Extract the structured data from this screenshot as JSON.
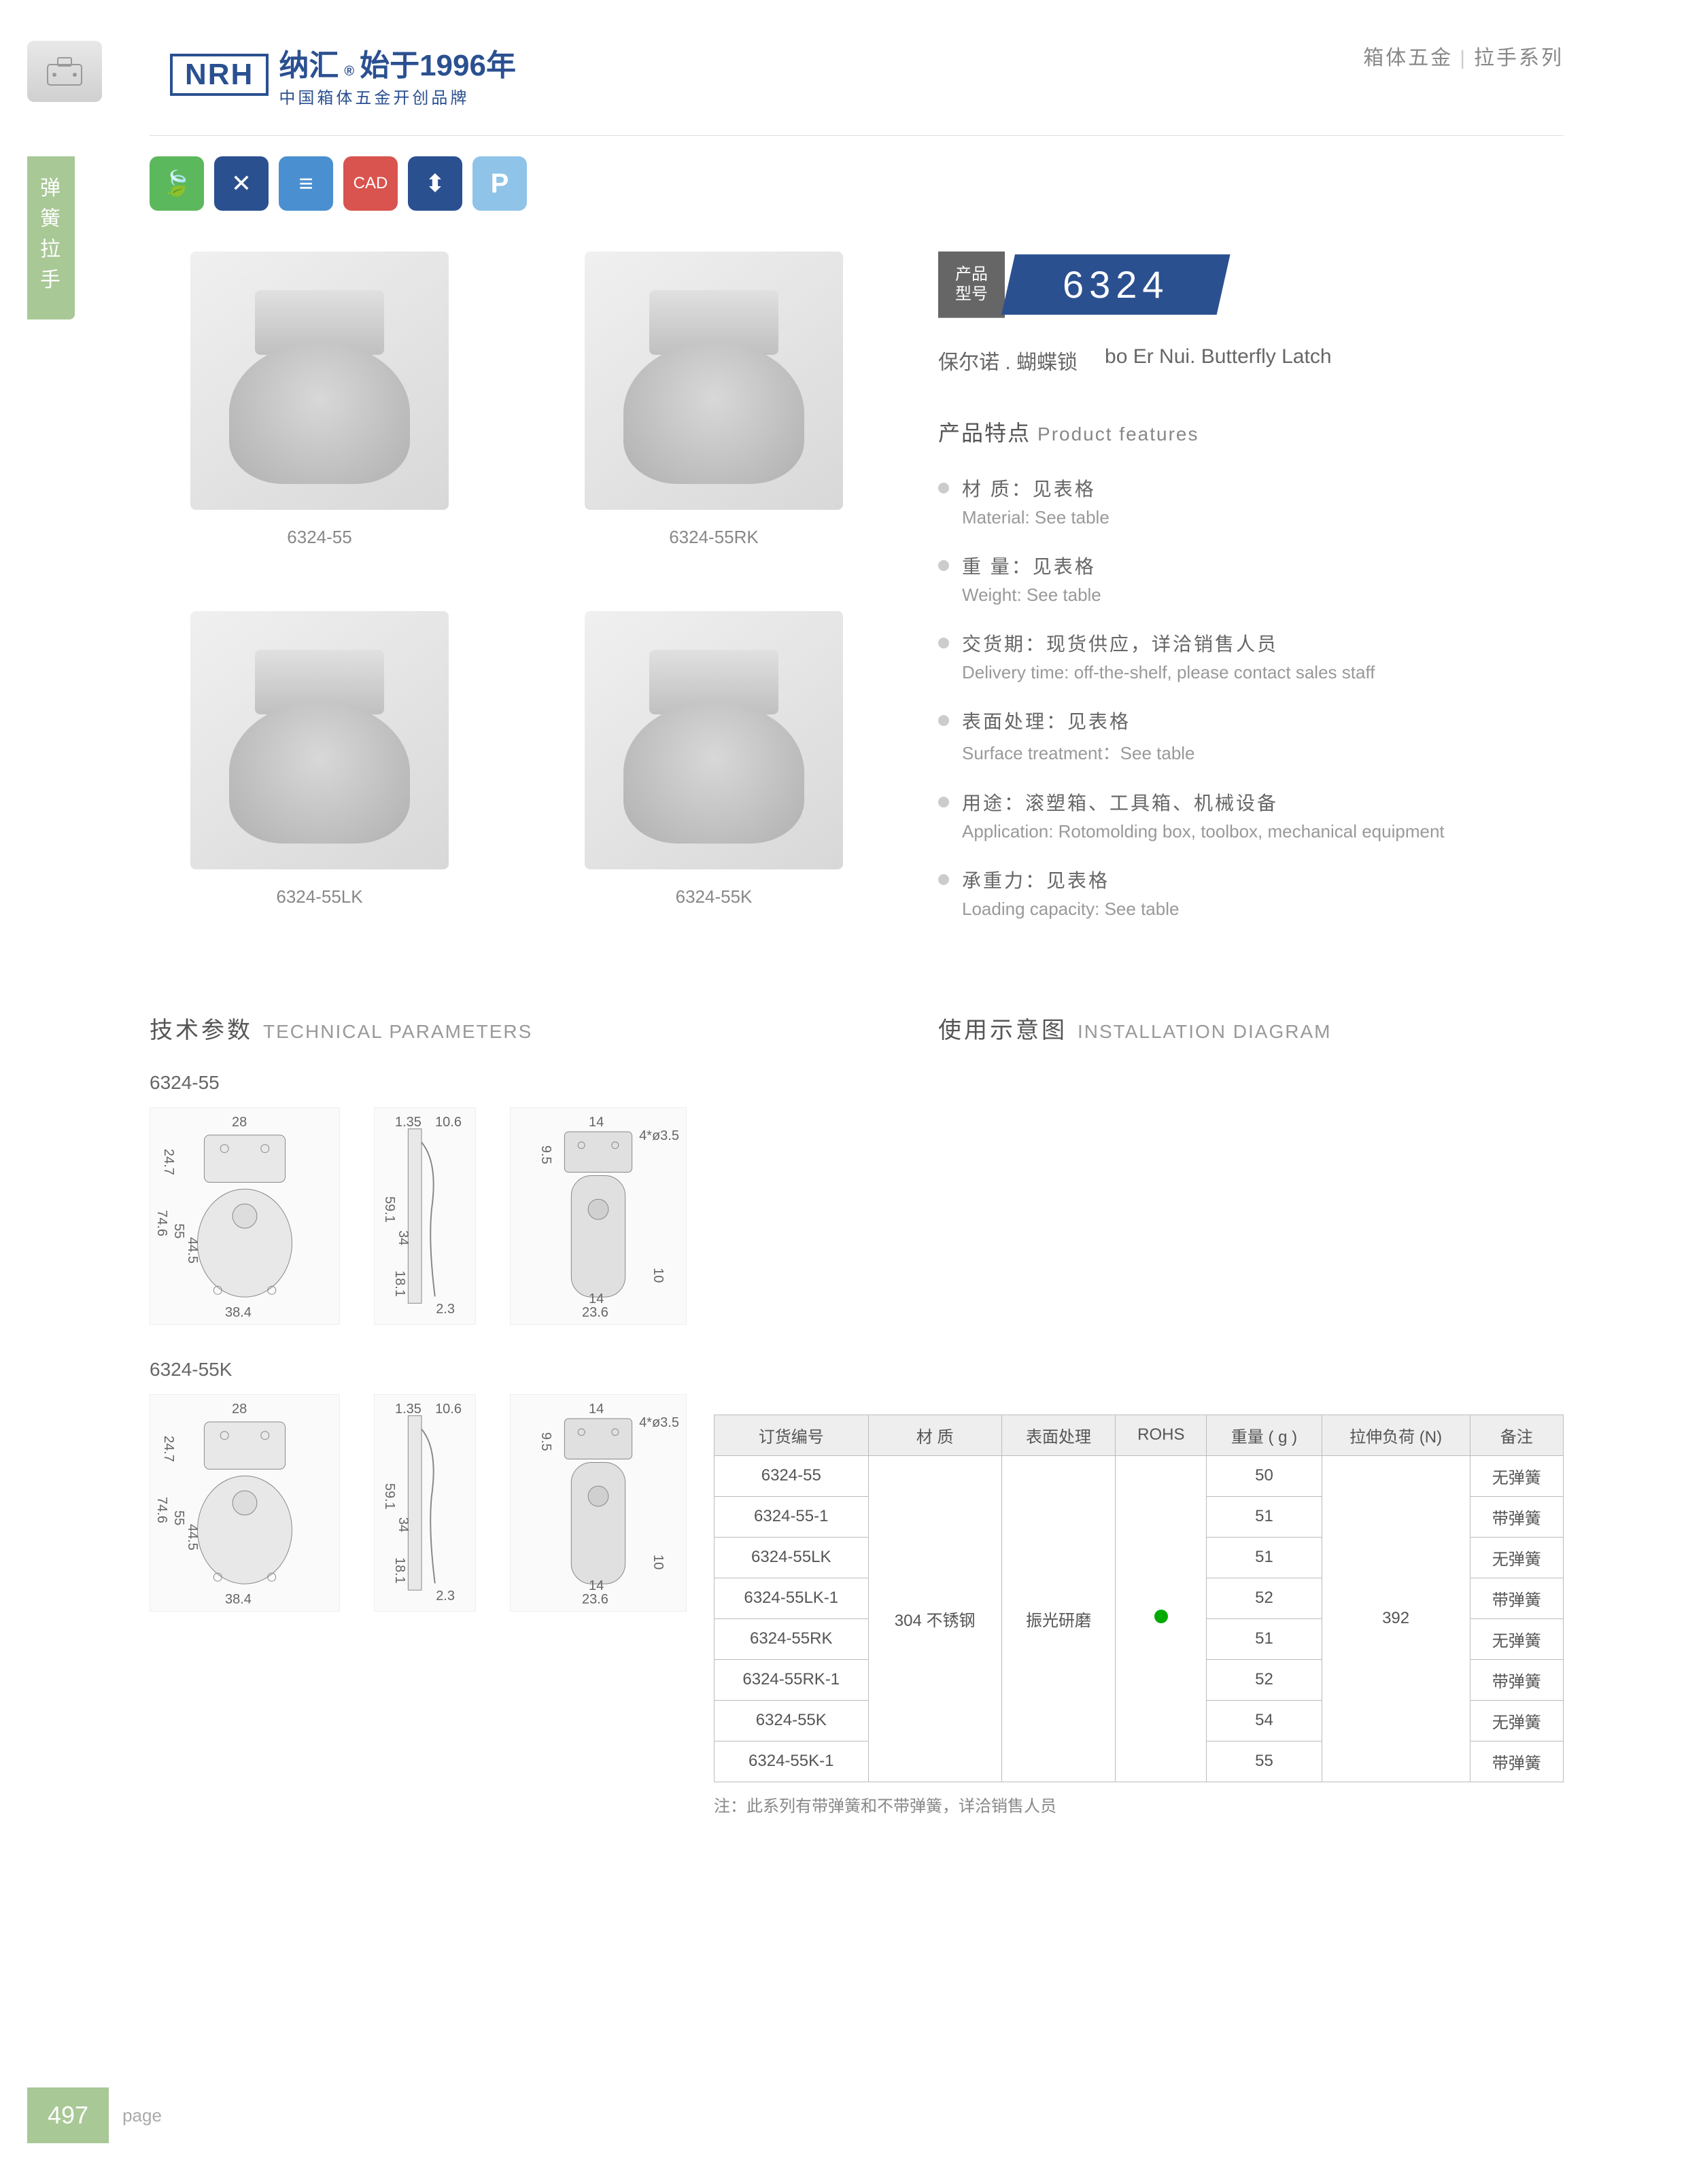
{
  "header": {
    "brand": "纳汇",
    "since": "始于1996年",
    "slogan": "中国箱体五金开创品牌",
    "logo": "NRH",
    "right1": "箱体五金",
    "right2": "拉手系列"
  },
  "sideTab": "弹簧拉手",
  "badges": [
    "🍃",
    "✕",
    "≡",
    "CAD",
    "⬍",
    "P"
  ],
  "products": [
    {
      "label": "6324-55"
    },
    {
      "label": "6324-55RK"
    },
    {
      "label": "6324-55LK"
    },
    {
      "label": "6324-55K"
    }
  ],
  "model": {
    "lbl1": "产品",
    "lbl2": "型号",
    "num": "6324",
    "nameCn": "保尔诺 . 蝴蝶锁",
    "nameEn": "bo Er Nui. Butterfly Latch"
  },
  "featTitle": {
    "cn": "产品特点",
    "en": "Product features"
  },
  "features": [
    {
      "cn": "材 质：见表格",
      "en": "Material: See table"
    },
    {
      "cn": "重 量：见表格",
      "en": "Weight: See table"
    },
    {
      "cn": "交货期：现货供应，详洽销售人员",
      "en": "Delivery time: off-the-shelf, please contact sales staff"
    },
    {
      "cn": "表面处理：见表格",
      "en": "Surface treatment：See table"
    },
    {
      "cn": "用途：滚塑箱、工具箱、机械设备",
      "en": "Application: Rotomolding box, toolbox, mechanical equipment"
    },
    {
      "cn": "承重力：见表格",
      "en": "Loading capacity: See table"
    }
  ],
  "techTitle": {
    "cn": "技术参数",
    "en": "TECHNICAL PARAMETERS"
  },
  "installTitle": {
    "cn": "使用示意图",
    "en": "INSTALLATION DIAGRAM"
  },
  "techBlocks": [
    "6324-55",
    "6324-55K"
  ],
  "dims": {
    "d1": "28",
    "d2": "1.35",
    "d3": "10.6",
    "d4": "14",
    "d5": "4*ø3.5",
    "d6": "24.7",
    "d7": "74.6",
    "d8": "55",
    "d9": "44.5",
    "d10": "34",
    "d11": "59.1",
    "d12": "18.1",
    "d13": "2.3",
    "d14": "38.4",
    "d15": "9.5",
    "d16": "10",
    "d17": "23.6"
  },
  "table": {
    "headers": [
      "订货编号",
      "材 质",
      "表面处理",
      "ROHS",
      "重量 ( g )",
      "拉伸负荷 (N)",
      "备注"
    ],
    "material": "304 不锈钢",
    "surface": "振光研磨",
    "load": "392",
    "rows": [
      {
        "code": "6324-55",
        "weight": "50",
        "note": "无弹簧"
      },
      {
        "code": "6324-55-1",
        "weight": "51",
        "note": "带弹簧"
      },
      {
        "code": "6324-55LK",
        "weight": "51",
        "note": "无弹簧"
      },
      {
        "code": "6324-55LK-1",
        "weight": "52",
        "note": "带弹簧"
      },
      {
        "code": "6324-55RK",
        "weight": "51",
        "note": "无弹簧"
      },
      {
        "code": "6324-55RK-1",
        "weight": "52",
        "note": "带弹簧"
      },
      {
        "code": "6324-55K",
        "weight": "54",
        "note": "无弹簧"
      },
      {
        "code": "6324-55K-1",
        "weight": "55",
        "note": "带弹簧"
      }
    ],
    "note": "注：此系列有带弹簧和不带弹簧，详洽销售人员"
  },
  "footer": {
    "num": "497",
    "txt": "page"
  }
}
